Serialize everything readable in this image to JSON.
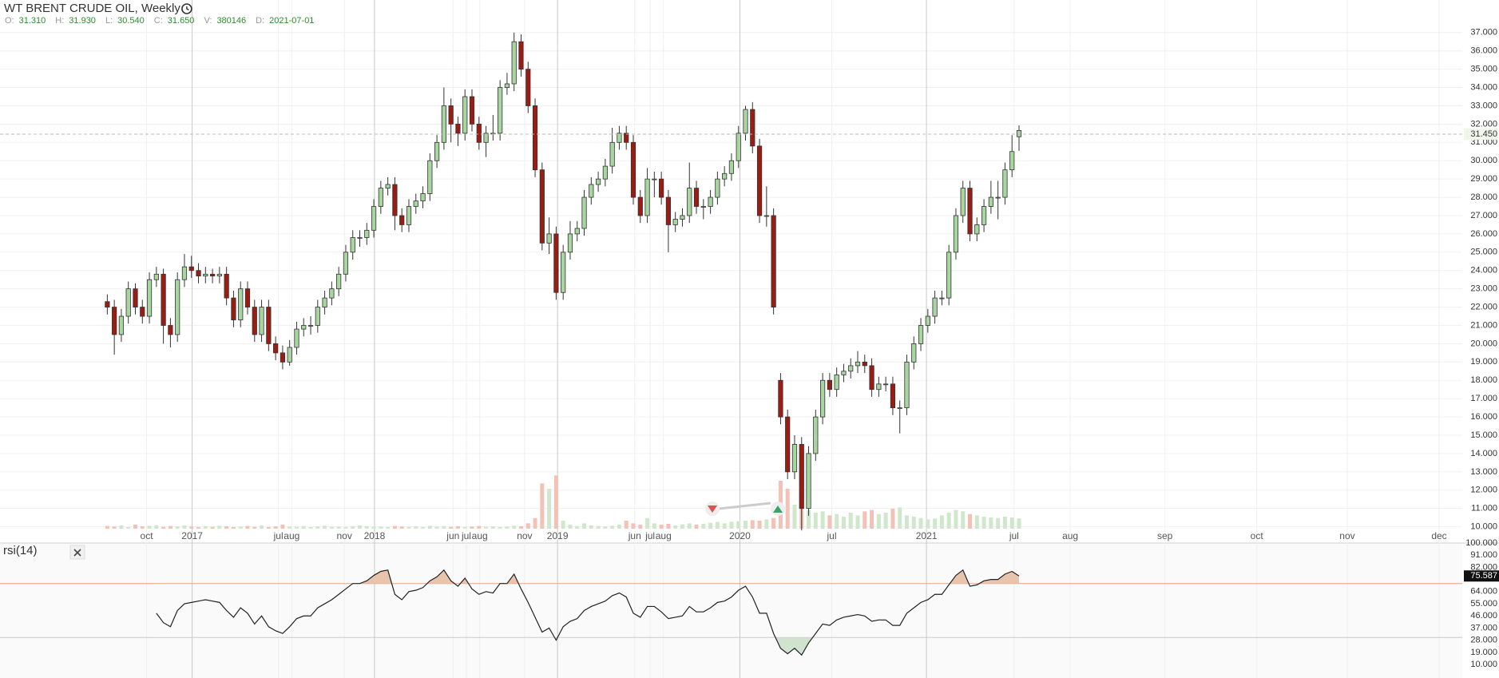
{
  "chart_data": {
    "type": "candlestick",
    "title": "WT BRENT CRUDE OIL, Weekly",
    "header": [
      {
        "label": "O:",
        "value": "31.310"
      },
      {
        "label": "H:",
        "value": "31.930"
      },
      {
        "label": "L:",
        "value": "30.540"
      },
      {
        "label": "C:",
        "value": "31.650"
      },
      {
        "label": "V:",
        "value": "380146"
      },
      {
        "label": "D:",
        "value": "2021-07-01"
      }
    ],
    "xlim": [
      -15.3,
      193.2
    ],
    "xticks": [
      {
        "value": 5.6,
        "label": "oct"
      },
      {
        "value": 12.1,
        "label": "2017"
      },
      {
        "value": 24.4,
        "label": "jul"
      },
      {
        "value": 26.3,
        "label": "aug"
      },
      {
        "value": 33.8,
        "label": "nov"
      },
      {
        "value": 38.1,
        "label": "2018"
      },
      {
        "value": 49.3,
        "label": "jun"
      },
      {
        "value": 51.2,
        "label": "jul"
      },
      {
        "value": 53.1,
        "label": "aug"
      },
      {
        "value": 59.5,
        "label": "nov"
      },
      {
        "value": 64.2,
        "label": "2019"
      },
      {
        "value": 75.2,
        "label": "jun"
      },
      {
        "value": 77.4,
        "label": "jul"
      },
      {
        "value": 79.3,
        "label": "aug"
      },
      {
        "value": 90.2,
        "label": "2020"
      },
      {
        "value": 103.3,
        "label": "jul"
      },
      {
        "value": 116.8,
        "label": "2021"
      },
      {
        "value": 129.3,
        "label": "jul"
      },
      {
        "value": 137.3,
        "label": "aug"
      },
      {
        "value": 150.8,
        "label": "sep"
      },
      {
        "value": 163.9,
        "label": "oct"
      },
      {
        "value": 176.8,
        "label": "nov"
      },
      {
        "value": 189.9,
        "label": "dec"
      }
    ],
    "ylim": [
      9.11,
      38.78
    ],
    "yticks": [
      {
        "value": 10,
        "label": "10.000"
      },
      {
        "value": 11,
        "label": "11.000"
      },
      {
        "value": 12,
        "label": "12.000"
      },
      {
        "value": 13,
        "label": "13.000"
      },
      {
        "value": 14,
        "label": "14.000"
      },
      {
        "value": 15,
        "label": "15.000"
      },
      {
        "value": 16,
        "label": "16.000"
      },
      {
        "value": 17,
        "label": "17.000"
      },
      {
        "value": 18,
        "label": "18.000"
      },
      {
        "value": 19,
        "label": "19.000"
      },
      {
        "value": 20,
        "label": "20.000"
      },
      {
        "value": 21,
        "label": "21.000"
      },
      {
        "value": 22,
        "label": "22.000"
      },
      {
        "value": 23,
        "label": "23.000"
      },
      {
        "value": 24,
        "label": "24.000"
      },
      {
        "value": 25,
        "label": "25.000"
      },
      {
        "value": 26,
        "label": "26.000"
      },
      {
        "value": 27,
        "label": "27.000"
      },
      {
        "value": 28,
        "label": "28.000"
      },
      {
        "value": 29,
        "label": "29.000"
      },
      {
        "value": 30,
        "label": "30.000"
      },
      {
        "value": 31,
        "label": "31.000"
      },
      {
        "value": 32,
        "label": "32.000"
      },
      {
        "value": 33,
        "label": "33.000"
      },
      {
        "value": 34,
        "label": "34.000"
      },
      {
        "value": 35,
        "label": "35.000"
      },
      {
        "value": 36,
        "label": "36.000"
      },
      {
        "value": 37,
        "label": "37.000"
      }
    ],
    "grid": true,
    "up_color": "#a8d5a0",
    "down_color": "#9b1c12",
    "price_line": {
      "value": 31.45,
      "label": "31.450"
    },
    "candles": [
      [
        22.3,
        22.7,
        21.6,
        22.0
      ],
      [
        22.0,
        22.4,
        19.4,
        20.5
      ],
      [
        20.5,
        21.9,
        20.1,
        21.5
      ],
      [
        21.5,
        23.4,
        21.1,
        23.0
      ],
      [
        23.0,
        23.3,
        21.6,
        22.0
      ],
      [
        22.0,
        22.4,
        21.1,
        21.5
      ],
      [
        21.5,
        23.9,
        21.1,
        23.5
      ],
      [
        23.5,
        24.2,
        23.1,
        23.8
      ],
      [
        23.8,
        24.1,
        20.0,
        21.0
      ],
      [
        21.0,
        21.4,
        19.8,
        20.5
      ],
      [
        20.5,
        23.9,
        20.1,
        23.5
      ],
      [
        23.5,
        24.9,
        23.1,
        24.2
      ],
      [
        24.2,
        24.8,
        23.6,
        24.0
      ],
      [
        24.0,
        24.4,
        23.3,
        23.7
      ],
      [
        23.7,
        24.2,
        23.3,
        23.8
      ],
      [
        23.8,
        24.1,
        23.3,
        23.7
      ],
      [
        23.7,
        24.2,
        23.3,
        23.8
      ],
      [
        23.8,
        24.2,
        22.1,
        22.5
      ],
      [
        22.5,
        22.9,
        20.9,
        21.3
      ],
      [
        21.3,
        23.4,
        20.9,
        23.0
      ],
      [
        23.0,
        23.4,
        21.6,
        22.0
      ],
      [
        22.0,
        22.4,
        20.1,
        20.5
      ],
      [
        20.5,
        22.4,
        20.1,
        22.0
      ],
      [
        22.0,
        22.4,
        19.6,
        20.0
      ],
      [
        20.0,
        20.4,
        19.1,
        19.5
      ],
      [
        19.5,
        19.9,
        18.6,
        19.0
      ],
      [
        19.0,
        20.2,
        18.8,
        19.8
      ],
      [
        19.8,
        21.2,
        19.4,
        20.8
      ],
      [
        20.8,
        21.4,
        20.4,
        21.0
      ],
      [
        21.0,
        21.5,
        20.5,
        21.0
      ],
      [
        21.0,
        22.4,
        20.6,
        22.0
      ],
      [
        22.0,
        22.9,
        21.6,
        22.5
      ],
      [
        22.5,
        23.4,
        22.1,
        23.0
      ],
      [
        23.0,
        24.2,
        22.6,
        23.8
      ],
      [
        23.8,
        25.4,
        23.4,
        25.0
      ],
      [
        25.0,
        26.2,
        24.6,
        25.8
      ],
      [
        25.8,
        26.2,
        25.3,
        25.8
      ],
      [
        25.8,
        26.6,
        25.4,
        26.2
      ],
      [
        26.2,
        27.9,
        25.8,
        27.5
      ],
      [
        27.5,
        28.9,
        27.1,
        28.5
      ],
      [
        28.5,
        29.1,
        28.1,
        28.7
      ],
      [
        28.7,
        29.1,
        26.2,
        27.0
      ],
      [
        27.0,
        27.4,
        26.1,
        26.5
      ],
      [
        26.5,
        27.9,
        26.1,
        27.5
      ],
      [
        27.5,
        28.2,
        27.1,
        27.8
      ],
      [
        27.8,
        28.6,
        27.4,
        28.2
      ],
      [
        28.2,
        30.4,
        27.8,
        30.0
      ],
      [
        30.0,
        31.4,
        29.6,
        31.0
      ],
      [
        31.0,
        34.0,
        30.6,
        33.0
      ],
      [
        33.0,
        33.4,
        31.0,
        32.0
      ],
      [
        32.0,
        32.4,
        30.8,
        31.5
      ],
      [
        31.5,
        33.9,
        31.1,
        33.5
      ],
      [
        33.5,
        33.9,
        31.6,
        32.0
      ],
      [
        32.0,
        32.4,
        30.6,
        31.0
      ],
      [
        31.0,
        31.9,
        30.2,
        31.5
      ],
      [
        31.5,
        32.5,
        31.1,
        31.5
      ],
      [
        31.5,
        34.4,
        31.1,
        34.0
      ],
      [
        34.0,
        34.8,
        33.6,
        34.2
      ],
      [
        34.2,
        37.0,
        33.8,
        36.5
      ],
      [
        36.5,
        36.9,
        34.6,
        35.0
      ],
      [
        35.0,
        35.4,
        32.6,
        33.0
      ],
      [
        33.0,
        33.4,
        29.1,
        29.5
      ],
      [
        29.5,
        29.9,
        25.1,
        25.5
      ],
      [
        25.5,
        26.9,
        24.9,
        26.0
      ],
      [
        26.0,
        26.4,
        22.4,
        22.8
      ],
      [
        22.8,
        25.4,
        22.4,
        25.0
      ],
      [
        25.0,
        26.7,
        24.6,
        26.0
      ],
      [
        26.0,
        26.7,
        25.6,
        26.3
      ],
      [
        26.3,
        28.4,
        25.9,
        28.0
      ],
      [
        28.0,
        29.1,
        27.6,
        28.7
      ],
      [
        28.7,
        29.4,
        28.3,
        29.0
      ],
      [
        29.0,
        30.1,
        28.6,
        29.7
      ],
      [
        29.7,
        31.8,
        29.3,
        31.0
      ],
      [
        31.0,
        31.9,
        30.6,
        31.5
      ],
      [
        31.5,
        31.9,
        30.6,
        31.0
      ],
      [
        31.0,
        31.4,
        27.6,
        28.0
      ],
      [
        28.0,
        28.4,
        26.6,
        27.0
      ],
      [
        27.0,
        29.6,
        26.6,
        29.0
      ],
      [
        29.0,
        29.4,
        28.0,
        29.0
      ],
      [
        29.0,
        29.4,
        27.6,
        28.0
      ],
      [
        28.0,
        28.4,
        25.0,
        26.5
      ],
      [
        26.5,
        27.2,
        26.1,
        26.8
      ],
      [
        26.8,
        27.4,
        26.4,
        27.0
      ],
      [
        27.0,
        29.9,
        26.6,
        28.5
      ],
      [
        28.5,
        28.9,
        27.1,
        27.5
      ],
      [
        27.5,
        27.9,
        26.8,
        27.5
      ],
      [
        27.5,
        28.4,
        27.1,
        28.0
      ],
      [
        28.0,
        29.4,
        27.6,
        29.0
      ],
      [
        29.0,
        29.7,
        28.6,
        29.3
      ],
      [
        29.3,
        30.4,
        28.9,
        30.0
      ],
      [
        30.0,
        31.9,
        29.6,
        31.5
      ],
      [
        31.5,
        33.0,
        31.1,
        32.8
      ],
      [
        32.8,
        33.2,
        30.4,
        30.8
      ],
      [
        30.8,
        31.2,
        26.6,
        27.0
      ],
      [
        27.0,
        28.6,
        26.4,
        27.0
      ],
      [
        27.0,
        27.4,
        21.6,
        22.0
      ],
      [
        18.0,
        18.4,
        15.6,
        16.0
      ],
      [
        16.0,
        16.4,
        12.6,
        13.0
      ],
      [
        13.0,
        15.0,
        12.6,
        14.5
      ],
      [
        14.5,
        14.9,
        9.8,
        11.0
      ],
      [
        11.0,
        14.4,
        10.6,
        14.0
      ],
      [
        14.0,
        16.4,
        13.6,
        16.0
      ],
      [
        16.0,
        18.4,
        15.6,
        18.0
      ],
      [
        18.0,
        18.4,
        17.1,
        17.5
      ],
      [
        17.5,
        18.7,
        17.1,
        18.3
      ],
      [
        18.3,
        18.9,
        17.9,
        18.5
      ],
      [
        18.5,
        19.2,
        18.1,
        18.8
      ],
      [
        18.8,
        19.6,
        18.4,
        19.0
      ],
      [
        19.0,
        19.4,
        18.4,
        18.8
      ],
      [
        18.8,
        19.2,
        17.1,
        17.5
      ],
      [
        17.5,
        18.2,
        17.1,
        17.8
      ],
      [
        17.8,
        18.2,
        17.4,
        17.8
      ],
      [
        17.8,
        18.2,
        16.1,
        16.5
      ],
      [
        16.5,
        16.9,
        15.1,
        16.5
      ],
      [
        16.5,
        19.4,
        16.1,
        19.0
      ],
      [
        19.0,
        20.4,
        18.6,
        20.0
      ],
      [
        20.0,
        21.4,
        19.6,
        21.0
      ],
      [
        21.0,
        21.9,
        20.6,
        21.5
      ],
      [
        21.5,
        22.9,
        21.1,
        22.5
      ],
      [
        22.5,
        22.9,
        22.1,
        22.5
      ],
      [
        22.5,
        25.4,
        22.1,
        25.0
      ],
      [
        25.0,
        27.4,
        24.6,
        27.0
      ],
      [
        27.0,
        28.9,
        26.6,
        28.5
      ],
      [
        28.5,
        28.9,
        25.6,
        26.0
      ],
      [
        26.0,
        26.9,
        25.6,
        26.5
      ],
      [
        26.5,
        27.9,
        26.1,
        27.5
      ],
      [
        27.5,
        28.9,
        27.1,
        28.0
      ],
      [
        28.0,
        28.9,
        26.8,
        28.0
      ],
      [
        28.0,
        29.9,
        27.6,
        29.5
      ],
      [
        29.5,
        31.4,
        29.1,
        30.5
      ],
      [
        31.31,
        31.93,
        30.54,
        31.65
      ]
    ],
    "volume": {
      "vlim": [
        0,
        6000000
      ],
      "up_color": "#cfe8cc",
      "down_color": "#f3c1b5",
      "values": [
        100000,
        80000,
        120000,
        60000,
        150000,
        90000,
        110000,
        130000,
        70000,
        100000,
        90000,
        120000,
        80000,
        60000,
        100000,
        70000,
        110000,
        90000,
        60000,
        80000,
        100000,
        70000,
        120000,
        60000,
        90000,
        150000,
        80000,
        70000,
        100000,
        60000,
        90000,
        110000,
        70000,
        80000,
        60000,
        100000,
        120000,
        90000,
        70000,
        80000,
        60000,
        100000,
        80000,
        70000,
        90000,
        60000,
        110000,
        80000,
        100000,
        70000,
        90000,
        60000,
        80000,
        100000,
        70000,
        90000,
        60000,
        80000,
        110000,
        90000,
        200000,
        400000,
        1700000,
        1500000,
        2000000,
        300000,
        150000,
        100000,
        200000,
        120000,
        100000,
        90000,
        110000,
        150000,
        300000,
        200000,
        150000,
        400000,
        200000,
        150000,
        180000,
        120000,
        160000,
        200000,
        150000,
        180000,
        220000,
        250000,
        200000,
        260000,
        280000,
        300000,
        320000,
        300000,
        350000,
        400000,
        1800000,
        1500000,
        900000,
        800000,
        700000,
        600000,
        650000,
        500000,
        550000,
        450000,
        600000,
        500000,
        650000,
        700000,
        550000,
        600000,
        750000,
        800000,
        500000,
        450000,
        400000,
        350000,
        380000,
        500000,
        600000,
        700000,
        650000,
        550000,
        500000,
        450000,
        420000,
        400000,
        450000,
        420000,
        380146
      ]
    },
    "indicator": {
      "name": "rsi(14)",
      "color": "#222222",
      "ylim": [
        0,
        100
      ],
      "yticks": [
        {
          "value": 10,
          "label": "10.000"
        },
        {
          "value": 19,
          "label": "19.000"
        },
        {
          "value": 28,
          "label": "28.000"
        },
        {
          "value": 37,
          "label": "37.000"
        },
        {
          "value": 46,
          "label": "46.000"
        },
        {
          "value": 55,
          "label": "55.000"
        },
        {
          "value": 64,
          "label": "64.000"
        },
        {
          "value": 82,
          "label": "82.000"
        },
        {
          "value": 91,
          "label": "91.000"
        },
        {
          "value": 100,
          "label": "100.000"
        }
      ],
      "levels": [
        70,
        30
      ],
      "values": [
        null,
        null,
        null,
        null,
        null,
        null,
        null,
        48,
        41,
        38,
        50,
        55,
        56,
        57,
        58,
        57,
        56,
        50,
        45,
        52,
        48,
        40,
        46,
        38,
        35,
        33,
        38,
        44,
        46,
        46,
        52,
        55,
        58,
        62,
        66,
        70,
        70,
        72,
        76,
        79,
        80,
        62,
        58,
        64,
        65,
        67,
        72,
        75,
        80,
        72,
        68,
        74,
        66,
        62,
        64,
        63,
        70,
        70,
        77,
        66,
        56,
        45,
        34,
        37,
        28,
        38,
        42,
        44,
        50,
        53,
        55,
        57,
        61,
        63,
        60,
        48,
        45,
        53,
        53,
        49,
        44,
        45,
        46,
        53,
        49,
        49,
        52,
        56,
        57,
        60,
        65,
        68,
        60,
        48,
        48,
        33,
        22,
        18,
        22,
        17,
        26,
        33,
        40,
        39,
        43,
        45,
        46,
        47,
        46,
        42,
        43,
        43,
        39,
        39,
        48,
        52,
        56,
        58,
        62,
        62,
        69,
        76,
        80,
        68,
        69,
        72,
        73,
        73,
        77,
        79,
        75.587
      ]
    }
  }
}
